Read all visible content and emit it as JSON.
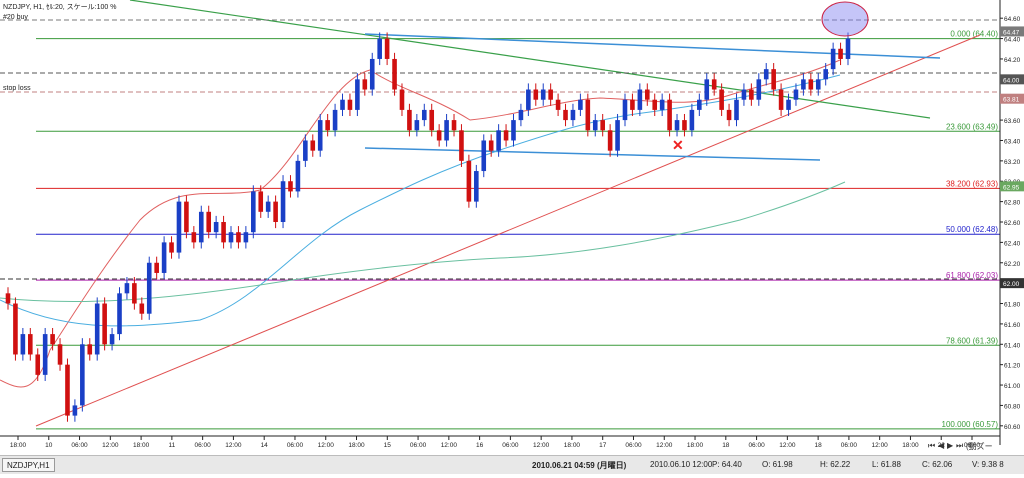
{
  "chart_header": "NZDJPY, H1, ｾﾙ:20, スケール:100 %",
  "buy_label": "#20 buy",
  "stop_label": "stop loss",
  "chart_data": {
    "type": "candlestick",
    "symbol": "NZDJPY",
    "timeframe": "H1",
    "ylim": [
      60.5,
      64.7
    ],
    "y_ticks": [
      60.6,
      60.8,
      61.0,
      61.2,
      61.4,
      61.6,
      61.8,
      62.0,
      62.2,
      62.4,
      62.6,
      62.8,
      63.0,
      63.2,
      63.4,
      63.6,
      63.8,
      64.0,
      64.2,
      64.4,
      64.6
    ],
    "y_tick_labels": [
      "60.60",
      "60.80",
      "61.00",
      "61.20",
      "61.40",
      "61.60",
      "61.80",
      "62.00",
      "62.20",
      "62.40",
      "62.60",
      "62.80",
      "63.00",
      "63.20",
      "63.40",
      "63.60",
      "63.80",
      "64.00",
      "64.20",
      "64.40",
      "64.60"
    ],
    "x_labels": [
      "18:00",
      "10",
      "06:00",
      "12:00",
      "18:00",
      "11",
      "06:00",
      "12:00",
      "14",
      "06:00",
      "12:00",
      "18:00",
      "15",
      "06:00",
      "12:00",
      "16",
      "06:00",
      "12:00",
      "18:00",
      "17",
      "06:00",
      "12:00",
      "18:00",
      "18",
      "06:00",
      "12:00",
      "18",
      "06:00",
      "12:00",
      "18:00",
      "22",
      "06:00"
    ],
    "price_tags": [
      {
        "price": 64.47,
        "label": "64.47",
        "color": "#7a7a7a"
      },
      {
        "price": 64.0,
        "label": "64.00",
        "color": "#555555"
      },
      {
        "price": 63.81,
        "label": "63.81",
        "color": "#c08080"
      },
      {
        "price": 62.95,
        "label": "62.95",
        "color": "#6aa860"
      },
      {
        "price": 62.0,
        "label": "62.00",
        "color": "#333333"
      }
    ],
    "fib_levels": [
      {
        "ratio": "0.000",
        "value": 64.4,
        "label": "0.000 (64.40)",
        "color": "#3a9a3a"
      },
      {
        "ratio": "23.600",
        "value": 63.49,
        "label": "23.600 (63.49)",
        "color": "#3a9a3a"
      },
      {
        "ratio": "38.200",
        "value": 62.93,
        "label": "38.200 (62.93)",
        "color": "#dd2222"
      },
      {
        "ratio": "50.000",
        "value": 62.48,
        "label": "50.000 (62.48)",
        "color": "#2222cc"
      },
      {
        "ratio": "61.800",
        "value": 62.03,
        "label": "61.800 (62.03)",
        "color": "#aa22aa"
      },
      {
        "ratio": "78.600",
        "value": 61.39,
        "label": "78.600 (61.39)",
        "color": "#3a9a3a"
      },
      {
        "ratio": "100.000",
        "value": 60.57,
        "label": "100.000 (60.57)",
        "color": "#3a9a3a"
      }
    ],
    "candles": [
      [
        0,
        61.9,
        61.8
      ],
      [
        1,
        61.8,
        61.3
      ],
      [
        2,
        61.3,
        61.5
      ],
      [
        3,
        61.5,
        61.3
      ],
      [
        4,
        61.3,
        61.1
      ],
      [
        5,
        61.1,
        61.5
      ],
      [
        6,
        61.5,
        61.4
      ],
      [
        7,
        61.4,
        61.2
      ],
      [
        8,
        61.2,
        60.7
      ],
      [
        9,
        60.7,
        60.8
      ],
      [
        10,
        60.8,
        61.4
      ],
      [
        11,
        61.4,
        61.3
      ],
      [
        12,
        61.3,
        61.8
      ],
      [
        13,
        61.8,
        61.4
      ],
      [
        14,
        61.4,
        61.5
      ],
      [
        15,
        61.5,
        61.9
      ],
      [
        16,
        61.9,
        62.0
      ],
      [
        17,
        62.0,
        61.8
      ],
      [
        18,
        61.8,
        61.7
      ],
      [
        19,
        61.7,
        62.2
      ],
      [
        20,
        62.2,
        62.1
      ],
      [
        21,
        62.1,
        62.4
      ],
      [
        22,
        62.4,
        62.3
      ],
      [
        23,
        62.3,
        62.8
      ],
      [
        24,
        62.8,
        62.5
      ],
      [
        25,
        62.5,
        62.4
      ],
      [
        26,
        62.4,
        62.7
      ],
      [
        27,
        62.7,
        62.5
      ],
      [
        28,
        62.5,
        62.6
      ],
      [
        29,
        62.6,
        62.4
      ],
      [
        30,
        62.4,
        62.5
      ],
      [
        31,
        62.5,
        62.4
      ],
      [
        32,
        62.4,
        62.5
      ],
      [
        33,
        62.5,
        62.9
      ],
      [
        34,
        62.9,
        62.7
      ],
      [
        35,
        62.7,
        62.8
      ],
      [
        36,
        62.8,
        62.6
      ],
      [
        37,
        62.6,
        63.0
      ],
      [
        38,
        63.0,
        62.9
      ],
      [
        39,
        62.9,
        63.2
      ],
      [
        40,
        63.2,
        63.4
      ],
      [
        41,
        63.4,
        63.3
      ],
      [
        42,
        63.3,
        63.6
      ],
      [
        43,
        63.6,
        63.5
      ],
      [
        44,
        63.5,
        63.7
      ],
      [
        45,
        63.7,
        63.8
      ],
      [
        46,
        63.8,
        63.7
      ],
      [
        47,
        63.7,
        64.0
      ],
      [
        48,
        64.0,
        63.9
      ],
      [
        49,
        63.9,
        64.2
      ],
      [
        50,
        64.2,
        64.4
      ],
      [
        51,
        64.4,
        64.2
      ],
      [
        52,
        64.2,
        63.9
      ],
      [
        53,
        63.9,
        63.7
      ],
      [
        54,
        63.7,
        63.5
      ],
      [
        55,
        63.5,
        63.6
      ],
      [
        56,
        63.6,
        63.7
      ],
      [
        57,
        63.7,
        63.5
      ],
      [
        58,
        63.5,
        63.4
      ],
      [
        59,
        63.4,
        63.6
      ],
      [
        60,
        63.6,
        63.5
      ],
      [
        61,
        63.5,
        63.2
      ],
      [
        62,
        63.2,
        62.8
      ],
      [
        63,
        62.8,
        63.1
      ],
      [
        64,
        63.1,
        63.4
      ],
      [
        65,
        63.4,
        63.3
      ],
      [
        66,
        63.3,
        63.5
      ],
      [
        67,
        63.5,
        63.4
      ],
      [
        68,
        63.4,
        63.6
      ],
      [
        69,
        63.6,
        63.7
      ],
      [
        70,
        63.7,
        63.9
      ],
      [
        71,
        63.9,
        63.8
      ],
      [
        72,
        63.8,
        63.9
      ],
      [
        73,
        63.9,
        63.8
      ],
      [
        74,
        63.8,
        63.7
      ],
      [
        75,
        63.7,
        63.6
      ],
      [
        76,
        63.6,
        63.7
      ],
      [
        77,
        63.7,
        63.8
      ],
      [
        78,
        63.8,
        63.5
      ],
      [
        79,
        63.5,
        63.6
      ],
      [
        80,
        63.6,
        63.5
      ],
      [
        81,
        63.5,
        63.3
      ],
      [
        82,
        63.3,
        63.6
      ],
      [
        83,
        63.6,
        63.8
      ],
      [
        84,
        63.8,
        63.7
      ],
      [
        85,
        63.7,
        63.9
      ],
      [
        86,
        63.9,
        63.8
      ],
      [
        87,
        63.8,
        63.7
      ],
      [
        88,
        63.7,
        63.8
      ],
      [
        89,
        63.8,
        63.5
      ],
      [
        90,
        63.5,
        63.6
      ],
      [
        91,
        63.6,
        63.5
      ],
      [
        92,
        63.5,
        63.7
      ],
      [
        93,
        63.7,
        63.8
      ],
      [
        94,
        63.8,
        64.0
      ],
      [
        95,
        64.0,
        63.9
      ],
      [
        96,
        63.9,
        63.7
      ],
      [
        97,
        63.7,
        63.6
      ],
      [
        98,
        63.6,
        63.8
      ],
      [
        99,
        63.8,
        63.9
      ],
      [
        100,
        63.9,
        63.8
      ],
      [
        101,
        63.8,
        64.0
      ],
      [
        102,
        64.0,
        64.1
      ],
      [
        103,
        64.1,
        63.9
      ],
      [
        104,
        63.9,
        63.7
      ],
      [
        105,
        63.7,
        63.8
      ],
      [
        106,
        63.8,
        63.9
      ],
      [
        107,
        63.9,
        64.0
      ],
      [
        108,
        64.0,
        63.9
      ],
      [
        109,
        63.9,
        64.0
      ],
      [
        110,
        64.0,
        64.1
      ],
      [
        111,
        64.1,
        64.3
      ],
      [
        112,
        64.3,
        64.2
      ],
      [
        113,
        64.2,
        64.4
      ]
    ]
  },
  "status_bar": {
    "symbol": "NZDJPY,H1",
    "datetime": "2010.06.21 04:59 (月曜日)",
    "bar_time": "2010.06.10 12:00",
    "price": "P: 64.40",
    "open": "O: 61.98",
    "high": "H: 62.22",
    "low": "L: 61.88",
    "close": "C: 62.06",
    "volume": "V: 9.38 8",
    "button": "(動ズー"
  }
}
